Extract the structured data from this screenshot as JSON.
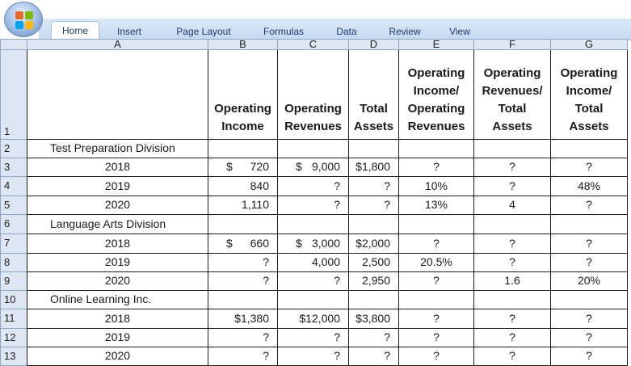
{
  "ribbon": {
    "tabs": [
      "Home",
      "Insert",
      "Page Layout",
      "Formulas",
      "Data",
      "Review",
      "View"
    ],
    "active_tab": "Home"
  },
  "columns": [
    "A",
    "B",
    "C",
    "D",
    "E",
    "F",
    "G"
  ],
  "row_numbers": [
    "1",
    "2",
    "3",
    "4",
    "5",
    "6",
    "7",
    "8",
    "9",
    "10",
    "11",
    "12",
    "13"
  ],
  "headers": {
    "B": [
      "Operating",
      "Income"
    ],
    "C": [
      "Operating",
      "Revenues"
    ],
    "D": [
      "Total",
      "Assets"
    ],
    "E": [
      "Operating",
      "Income/",
      "Operating",
      "Revenues"
    ],
    "F": [
      "Operating",
      "Revenues/",
      "Total",
      "Assets"
    ],
    "G": [
      "Operating",
      "Income/",
      "Total",
      "Assets"
    ]
  },
  "rows": [
    {
      "type": "section",
      "label": "Test Preparation Division"
    },
    {
      "type": "data",
      "year": "2018",
      "B": "720",
      "B_dollar": true,
      "C": "9,000",
      "C_dollar": true,
      "D": "$1,800",
      "E": "?",
      "F": "?",
      "G": "?"
    },
    {
      "type": "data",
      "year": "2019",
      "B": "840",
      "C": "?",
      "D": "?",
      "E": "10%",
      "F": "?",
      "G": "48%"
    },
    {
      "type": "data",
      "year": "2020",
      "B": "1,110",
      "C": "?",
      "D": "?",
      "E": "13%",
      "F": "4",
      "G": "?"
    },
    {
      "type": "section",
      "label": "Language Arts Division"
    },
    {
      "type": "data",
      "year": "2018",
      "B": "660",
      "B_dollar": true,
      "C": "3,000",
      "C_dollar": true,
      "D": "$2,000",
      "E": "?",
      "F": "?",
      "G": "?"
    },
    {
      "type": "data",
      "year": "2019",
      "B": "?",
      "C": "4,000",
      "D": "2,500",
      "E": "20.5%",
      "F": "?",
      "G": "?"
    },
    {
      "type": "data",
      "year": "2020",
      "B": "?",
      "C": "?",
      "D": "2,950",
      "E": "?",
      "F": "1.6",
      "G": "20%"
    },
    {
      "type": "section",
      "label": "Online Learning Inc."
    },
    {
      "type": "data",
      "year": "2018",
      "B": "$1,380",
      "C": "$12,000",
      "D": "$3,800",
      "E": "?",
      "F": "?",
      "G": "?"
    },
    {
      "type": "data",
      "year": "2019",
      "B": "?",
      "C": "?",
      "D": "?",
      "E": "?",
      "F": "?",
      "G": "?"
    },
    {
      "type": "data",
      "year": "2020",
      "B": "?",
      "C": "?",
      "D": "?",
      "E": "?",
      "F": "?",
      "G": "?"
    }
  ],
  "colors": {
    "header_fill": "#dde7f3",
    "tab_bar": "#c5d9f1",
    "grid_line": "#1a1a1a"
  }
}
